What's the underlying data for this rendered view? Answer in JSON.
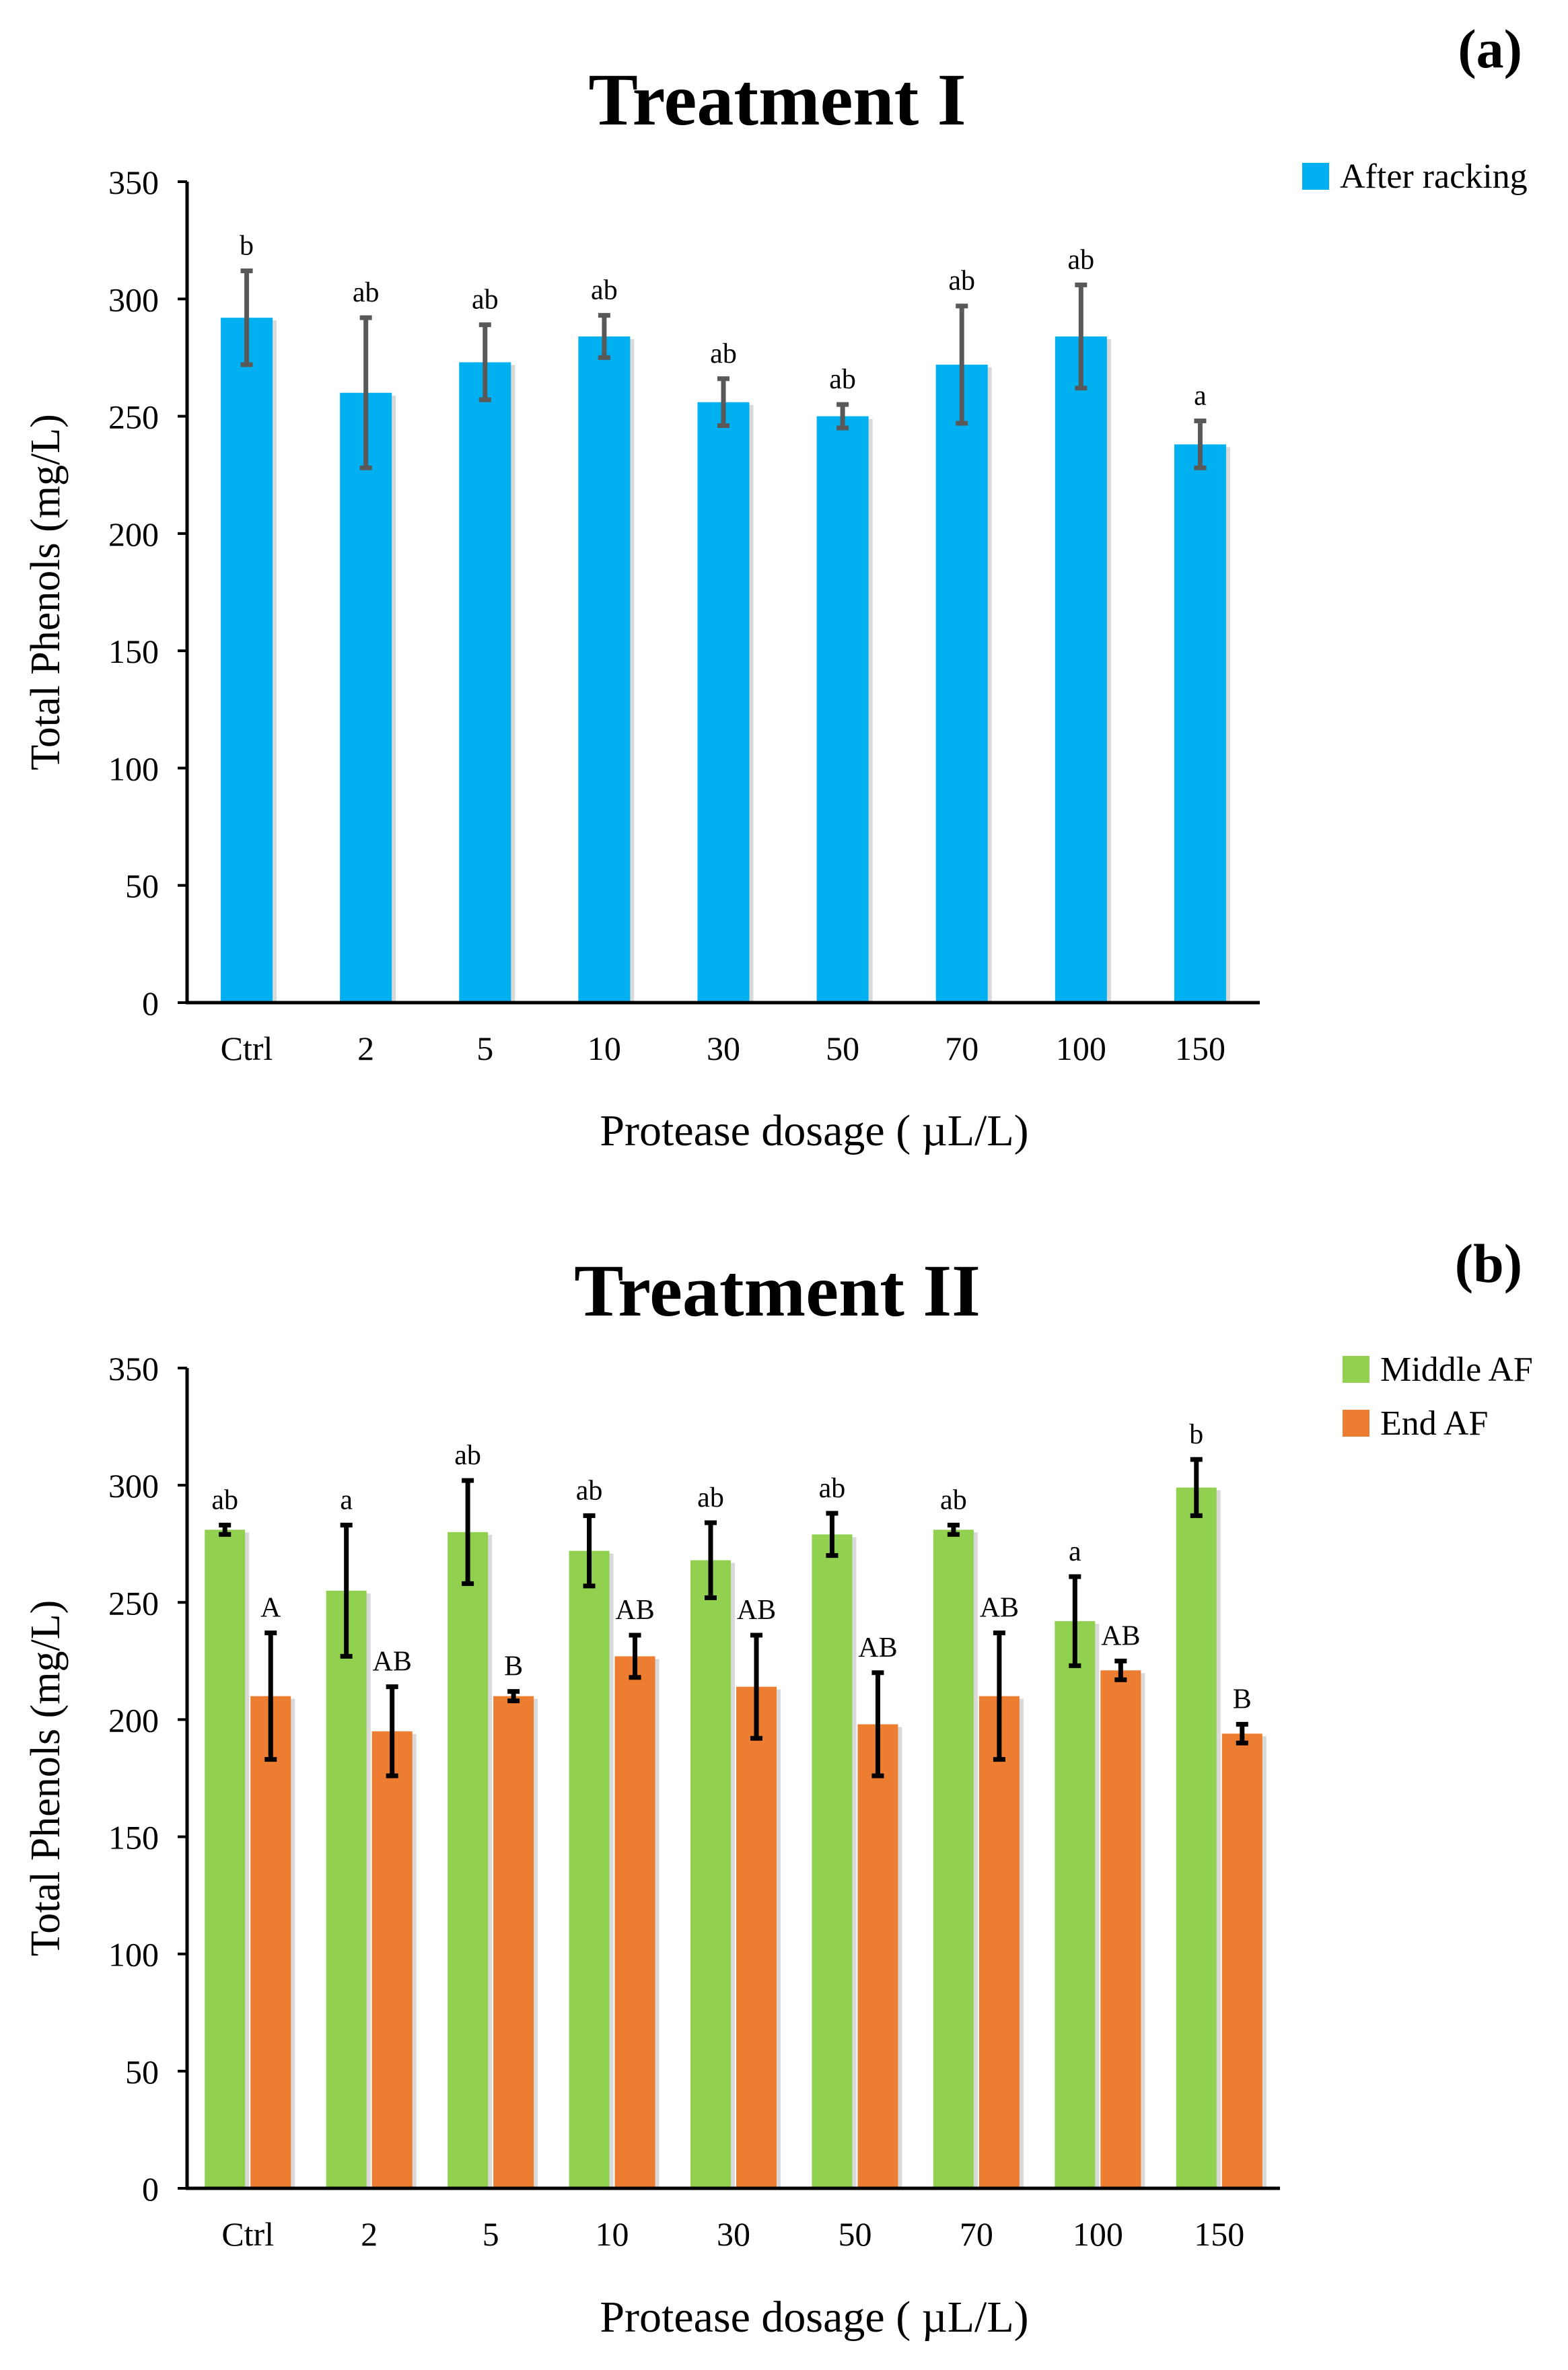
{
  "chart_data": [
    {
      "panel_label": "(a)",
      "type": "bar",
      "title": "Treatment I",
      "xlabel": "Protease dosage ( µL/L)",
      "ylabel": "Total Phenols (mg/L)",
      "ylim": [
        0,
        350
      ],
      "yticks": [
        0,
        50,
        100,
        150,
        200,
        250,
        300,
        350
      ],
      "legend_position": "top-right",
      "categories": [
        "Ctrl",
        "2",
        "5",
        "10",
        "30",
        "50",
        "70",
        "100",
        "150"
      ],
      "series": [
        {
          "name": "After racking",
          "color": "#00B0F0",
          "error_color": "#595959",
          "values": [
            292,
            260,
            273,
            284,
            256,
            250,
            272,
            284,
            238
          ],
          "errors": [
            20,
            32,
            16,
            9,
            10,
            5,
            25,
            22,
            10
          ],
          "letters": [
            "b",
            "ab",
            "ab",
            "ab",
            "ab",
            "ab",
            "ab",
            "ab",
            "a"
          ]
        }
      ]
    },
    {
      "panel_label": "(b)",
      "type": "bar",
      "title": "Treatment II",
      "xlabel": "Protease dosage ( µL/L)",
      "ylabel": "Total Phenols (mg/L)",
      "ylim": [
        0,
        350
      ],
      "yticks": [
        0,
        50,
        100,
        150,
        200,
        250,
        300,
        350
      ],
      "legend_position": "top-right",
      "categories": [
        "Ctrl",
        "2",
        "5",
        "10",
        "30",
        "50",
        "70",
        "100",
        "150"
      ],
      "series": [
        {
          "name": "Middle AF",
          "color": "#92D050",
          "error_color": "#000000",
          "values": [
            281,
            255,
            280,
            272,
            268,
            279,
            281,
            242,
            299
          ],
          "errors": [
            2,
            28,
            22,
            15,
            16,
            9,
            2,
            19,
            12
          ],
          "letters": [
            "ab",
            "a",
            "ab",
            "ab",
            "ab",
            "ab",
            "ab",
            "a",
            "b"
          ]
        },
        {
          "name": "End AF",
          "color": "#ED7D31",
          "error_color": "#000000",
          "values": [
            210,
            195,
            210,
            227,
            214,
            198,
            210,
            221,
            194
          ],
          "errors": [
            27,
            19,
            2,
            9,
            22,
            22,
            27,
            4,
            4
          ],
          "letters": [
            "A",
            "AB",
            "B",
            "AB",
            "AB",
            "AB",
            "AB",
            "AB",
            "B"
          ]
        }
      ]
    }
  ]
}
